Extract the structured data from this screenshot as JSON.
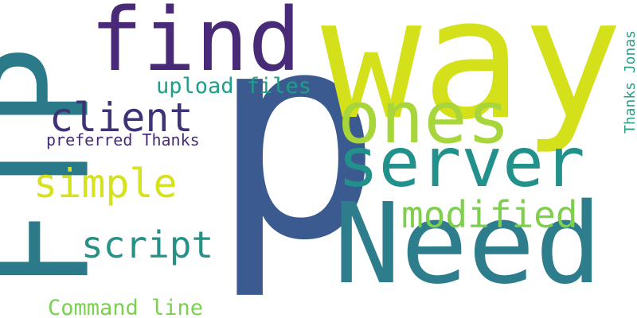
{
  "words": {
    "p": {
      "text": "p",
      "color": "#3b5a8f"
    },
    "way": {
      "text": "way",
      "color": "#d4e01a"
    },
    "ftp": {
      "text": "FTP",
      "color": "#2b7a8a"
    },
    "need": {
      "text": "Need",
      "color": "#2e7d8c"
    },
    "find": {
      "text": "find",
      "color": "#482a78"
    },
    "ones": {
      "text": "ones",
      "color": "#a8d63a"
    },
    "server": {
      "text": "server",
      "color": "#22918c"
    },
    "client": {
      "text": "client",
      "color": "#3f3377"
    },
    "simple": {
      "text": "simple",
      "color": "#d7e21e"
    },
    "modified": {
      "text": "modified",
      "color": "#7fcf4f"
    },
    "script": {
      "text": "script",
      "color": "#279188"
    },
    "upload_files": {
      "text": "upload files",
      "color": "#1f9e89"
    },
    "preferred_thanks": {
      "text": "preferred Thanks",
      "color": "#482b78"
    },
    "command_line": {
      "text": "Command line",
      "color": "#7ad151"
    },
    "thanks_jonas": {
      "text": "Thanks Jonas",
      "color": "#2a9f86"
    }
  }
}
